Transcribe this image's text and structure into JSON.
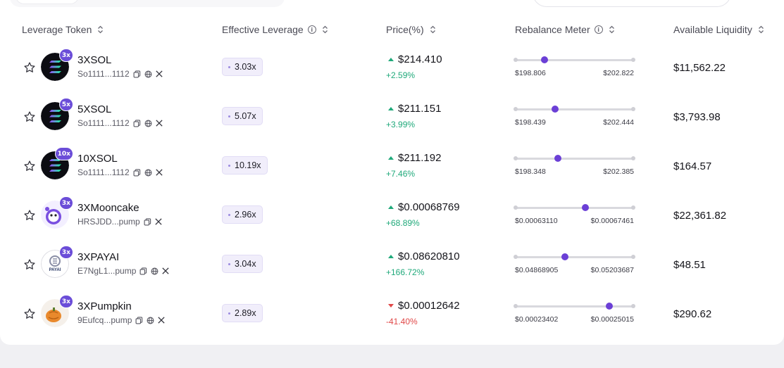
{
  "colors": {
    "accent": "#6b3fd6",
    "positive": "#1fa97a",
    "negative": "#e04848"
  },
  "columns": {
    "token": "Leverage Token",
    "effective_leverage": "Effective Leverage",
    "price": "Price(%)",
    "rebalance": "Rebalance Meter",
    "liquidity": "Available Liquidity"
  },
  "rows": [
    {
      "name": "3XSOL",
      "badge": "3x",
      "address": "So1111...1112",
      "icons": [
        "copy-icon",
        "globe-icon",
        "x-icon"
      ],
      "avatar": "sol",
      "leverage": "3.03x",
      "price": "$214.410",
      "direction": "up",
      "change": "+2.59%",
      "meter_low": "$198.806",
      "meter_high": "$202.822",
      "meter_fraction": 0.25,
      "liquidity": "$11,562.22"
    },
    {
      "name": "5XSOL",
      "badge": "5x",
      "address": "So1111...1112",
      "icons": [
        "copy-icon",
        "globe-icon",
        "x-icon"
      ],
      "avatar": "sol",
      "leverage": "5.07x",
      "price": "$211.151",
      "direction": "up",
      "change": "+3.99%",
      "meter_low": "$198.439",
      "meter_high": "$202.444",
      "meter_fraction": 0.34,
      "liquidity": "$3,793.98"
    },
    {
      "name": "10XSOL",
      "badge": "10x",
      "address": "So1111...1112",
      "icons": [
        "copy-icon",
        "globe-icon",
        "x-icon"
      ],
      "avatar": "sol",
      "leverage": "10.19x",
      "price": "$211.192",
      "direction": "up",
      "change": "+7.46%",
      "meter_low": "$198.348",
      "meter_high": "$202.385",
      "meter_fraction": 0.36,
      "liquidity": "$164.57"
    },
    {
      "name": "3XMooncake",
      "badge": "3x",
      "address": "HRSJDD...pump",
      "icons": [
        "copy-icon",
        "x-icon"
      ],
      "avatar": "mooncake",
      "leverage": "2.96x",
      "price": "$0.00068769",
      "direction": "up",
      "change": "+68.89%",
      "meter_low": "$0.00063110",
      "meter_high": "$0.00067461",
      "meter_fraction": 0.59,
      "liquidity": "$22,361.82"
    },
    {
      "name": "3XPAYAI",
      "badge": "3x",
      "address": "E7NgL1...pump",
      "icons": [
        "copy-icon",
        "globe-icon",
        "x-icon"
      ],
      "avatar": "payai",
      "avatar_text": "PAYAI",
      "leverage": "3.04x",
      "price": "$0.08620810",
      "direction": "up",
      "change": "+166.72%",
      "meter_low": "$0.04868905",
      "meter_high": "$0.05203687",
      "meter_fraction": 0.42,
      "liquidity": "$48.51"
    },
    {
      "name": "3XPumpkin",
      "badge": "3x",
      "address": "9Eufcq...pump",
      "icons": [
        "copy-icon",
        "globe-icon",
        "x-icon"
      ],
      "avatar": "pumpkin",
      "leverage": "2.89x",
      "price": "$0.00012642",
      "direction": "down",
      "change": "-41.40%",
      "meter_low": "$0.00023402",
      "meter_high": "$0.00025015",
      "meter_fraction": 0.79,
      "liquidity": "$290.62"
    }
  ]
}
